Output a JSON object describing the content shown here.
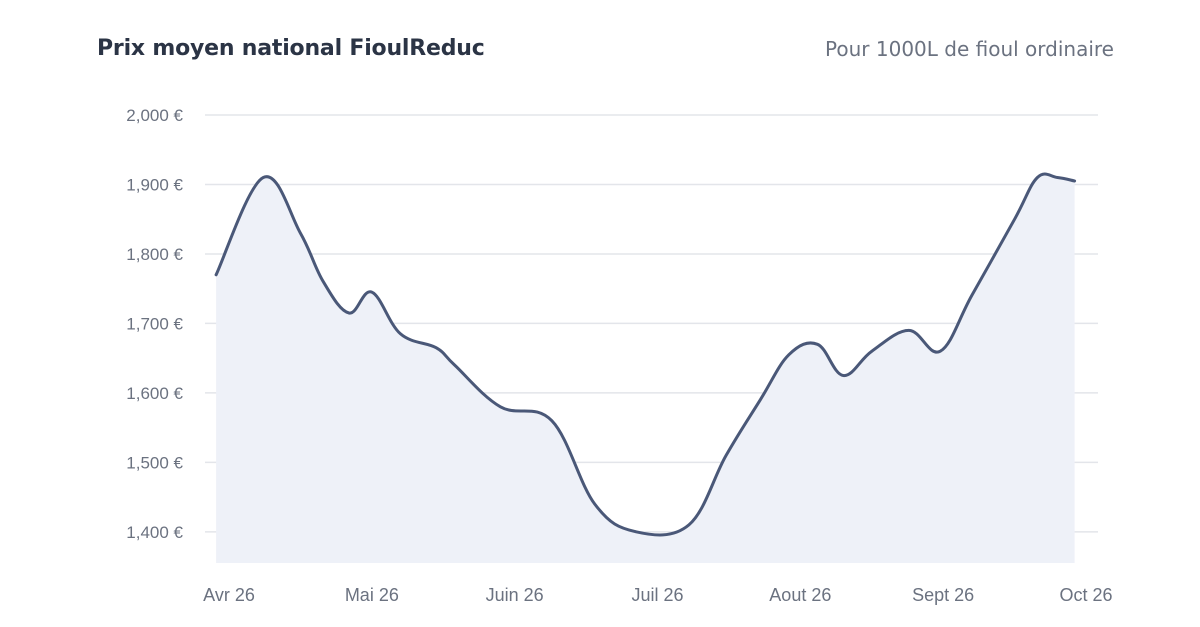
{
  "header": {
    "title": "Prix moyen national FioulReduc",
    "subtitle": "Pour 1000L de fioul ordinaire"
  },
  "chart_data": {
    "type": "area",
    "title": "Prix moyen national FioulReduc",
    "subtitle": "Pour 1000L de fioul ordinaire",
    "xlabel": "",
    "ylabel": "",
    "ylim": [
      1340,
      2000
    ],
    "y_ticks": [
      {
        "value": 2000,
        "label": "2,000 €"
      },
      {
        "value": 1900,
        "label": "1,900 €"
      },
      {
        "value": 1800,
        "label": "1,800 €"
      },
      {
        "value": 1700,
        "label": "1,700 €"
      },
      {
        "value": 1600,
        "label": "1,600 €"
      },
      {
        "value": 1500,
        "label": "1,500 €"
      },
      {
        "value": 1400,
        "label": "1,400 €"
      }
    ],
    "x_range": [
      0,
      6
    ],
    "x_ticks": [
      {
        "value": 0,
        "label": "Avr 26"
      },
      {
        "value": 1,
        "label": "Mai 26"
      },
      {
        "value": 2,
        "label": "Juin 26"
      },
      {
        "value": 3,
        "label": "Juil 26"
      },
      {
        "value": 4,
        "label": "Aout 26"
      },
      {
        "value": 5,
        "label": "Sept 26"
      },
      {
        "value": 6,
        "label": "Oct 26"
      }
    ],
    "grid": true,
    "colors": {
      "line": "#4a5878",
      "fill": "#eef1f8",
      "grid": "#e3e5ea"
    },
    "series": [
      {
        "points": [
          [
            -0.09,
            1770
          ],
          [
            0.24,
            1910
          ],
          [
            0.5,
            1830
          ],
          [
            0.66,
            1760
          ],
          [
            0.84,
            1715
          ],
          [
            1.0,
            1745
          ],
          [
            1.2,
            1685
          ],
          [
            1.45,
            1665
          ],
          [
            1.58,
            1640
          ],
          [
            1.9,
            1580
          ],
          [
            2.26,
            1560
          ],
          [
            2.56,
            1440
          ],
          [
            2.85,
            1400
          ],
          [
            3.22,
            1410
          ],
          [
            3.48,
            1510
          ],
          [
            3.72,
            1590
          ],
          [
            3.92,
            1655
          ],
          [
            4.12,
            1670
          ],
          [
            4.3,
            1625
          ],
          [
            4.5,
            1660
          ],
          [
            4.76,
            1690
          ],
          [
            4.98,
            1660
          ],
          [
            5.2,
            1740
          ],
          [
            5.5,
            1850
          ],
          [
            5.66,
            1910
          ],
          [
            5.8,
            1910
          ],
          [
            5.92,
            1905
          ]
        ]
      }
    ]
  }
}
